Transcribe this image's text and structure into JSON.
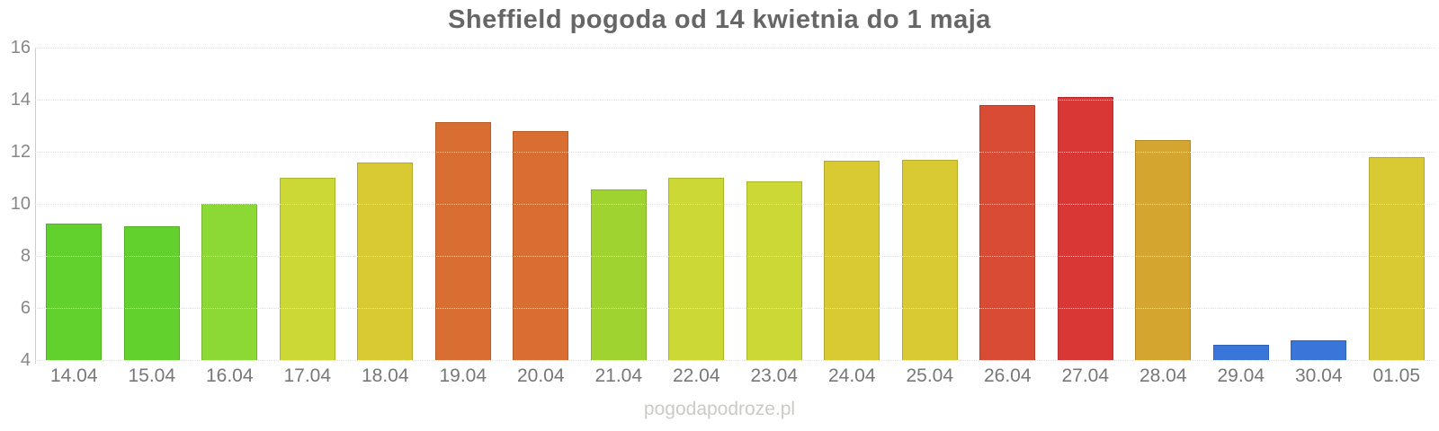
{
  "title": "Sheffield pogoda od 14 kwietnia do 1 maja",
  "watermark": "pogodapodroze.pl",
  "chart_data": {
    "type": "bar",
    "title": "Sheffield pogoda od 14 kwietnia do 1 maja",
    "xlabel": "",
    "ylabel": "",
    "ylim": [
      4,
      16
    ],
    "yticks": [
      4,
      6,
      8,
      10,
      12,
      14,
      16
    ],
    "grid": true,
    "legend": false,
    "categories": [
      "14.04",
      "15.04",
      "16.04",
      "17.04",
      "18.04",
      "19.04",
      "20.04",
      "21.04",
      "22.04",
      "23.04",
      "24.04",
      "25.04",
      "26.04",
      "27.04",
      "28.04",
      "29.04",
      "30.04",
      "01.05"
    ],
    "values": [
      9.25,
      9.15,
      10.0,
      11.0,
      11.6,
      13.15,
      12.8,
      10.55,
      11.0,
      10.85,
      11.65,
      11.7,
      13.8,
      14.1,
      12.45,
      4.6,
      4.75,
      11.8
    ],
    "bar_colors": [
      "#62d12e",
      "#62d12e",
      "#8cd936",
      "#ccd835",
      "#d9c933",
      "#d96e32",
      "#d96e32",
      "#9ed330",
      "#ccd835",
      "#ccd835",
      "#d9c933",
      "#d9c933",
      "#d94b35",
      "#d93636",
      "#d4a52f",
      "#3a75d9",
      "#3a75d9",
      "#d9c933"
    ]
  },
  "style_colors": {
    "title": "#666666",
    "y_axis_label": "#878787",
    "x_axis_label": "#777777",
    "gridline": "#e2e2e2",
    "axis_line": "#cccccc",
    "watermark": "#cbcbc6"
  }
}
